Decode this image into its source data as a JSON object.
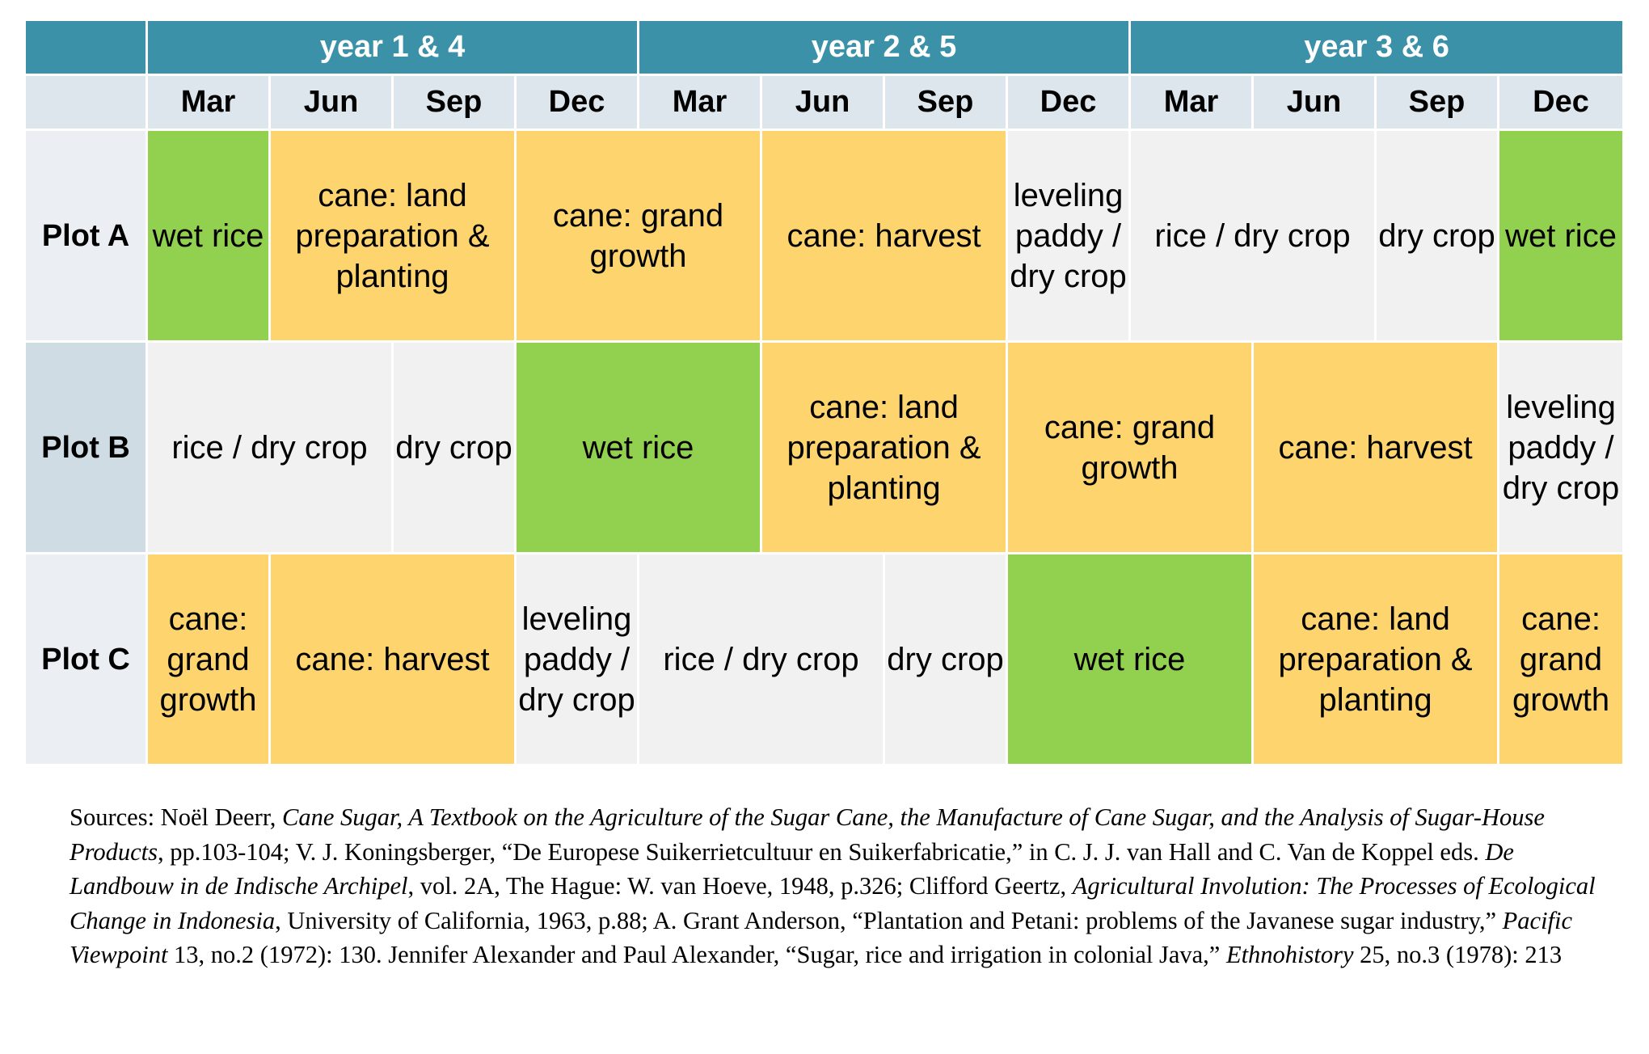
{
  "table": {
    "years": [
      "year 1 & 4",
      "year 2 & 5",
      "year 3 & 6"
    ],
    "months": [
      "Mar",
      "Jun",
      "Sep",
      "Dec",
      "Mar",
      "Jun",
      "Sep",
      "Dec",
      "Mar",
      "Jun",
      "Sep",
      "Dec"
    ],
    "plot_a": {
      "label": "Plot A",
      "cells": [
        {
          "text": "wet rice",
          "kind": "wet",
          "span": 1
        },
        {
          "text": "cane: land preparation & planting",
          "kind": "cane",
          "span": 2
        },
        {
          "text": "cane: grand growth",
          "kind": "cane",
          "span": 2
        },
        {
          "text": "cane: harvest",
          "kind": "cane",
          "span": 2
        },
        {
          "text": "leveling paddy / dry crop",
          "kind": "dry",
          "span": 1
        },
        {
          "text": "rice / dry crop",
          "kind": "dry",
          "span": 2
        },
        {
          "text": "dry crop",
          "kind": "dry",
          "span": 1
        },
        {
          "text": "wet rice",
          "kind": "wet",
          "span": 1
        }
      ]
    },
    "plot_b": {
      "label": "Plot B",
      "cells": [
        {
          "text": "rice / dry crop",
          "kind": "dry",
          "span": 2
        },
        {
          "text": "dry crop",
          "kind": "dry",
          "span": 1
        },
        {
          "text": "wet rice",
          "kind": "wet",
          "span": 2
        },
        {
          "text": "cane: land preparation & planting",
          "kind": "cane",
          "span": 2
        },
        {
          "text": "cane: grand growth",
          "kind": "cane",
          "span": 2
        },
        {
          "text": "cane: harvest",
          "kind": "cane",
          "span": 2
        },
        {
          "text": "leveling paddy / dry crop",
          "kind": "dry",
          "span": 1
        }
      ]
    },
    "plot_c": {
      "label": "Plot C",
      "cells": [
        {
          "text": "cane: grand growth",
          "kind": "cane",
          "span": 1
        },
        {
          "text": "cane: harvest",
          "kind": "cane",
          "span": 2
        },
        {
          "text": "leveling paddy / dry crop",
          "kind": "dry",
          "span": 1
        },
        {
          "text": "rice / dry crop",
          "kind": "dry",
          "span": 2
        },
        {
          "text": "dry crop",
          "kind": "dry",
          "span": 1
        },
        {
          "text": "wet rice",
          "kind": "wet",
          "span": 2
        },
        {
          "text": "cane: land preparation & planting",
          "kind": "cane",
          "span": 2
        },
        {
          "text": "cane: grand growth",
          "kind": "cane",
          "span": 1
        }
      ]
    }
  },
  "sources": {
    "s01": "Sources: Noël Deerr, ",
    "s02": "Cane Sugar, A Textbook on the Agriculture of the Sugar Cane, the Manufacture of Cane Sugar, and the Analysis of Sugar-House Products",
    "s03": ", pp.103-104; V. J. Koningsberger, “De Europese Suikerrietcultuur en Suikerfabricatie,” in C. J. J. van Hall and C. Van de Koppel eds. ",
    "s04": "De Landbouw in de Indische Archipel",
    "s05": ", vol. 2A, The Hague: W. van Hoeve, 1948, p.326; Clifford Geertz, ",
    "s06": "Agricultural Involution: The Processes of Ecological Change in Indonesia",
    "s07": ", University of California, 1963, p.88; A. Grant Anderson, “Plantation and Petani: problems of the Javanese sugar industry,” ",
    "s08": "Pacific Viewpoint",
    "s09": " 13, no.2 (1972): 130. Jennifer Alexander and Paul Alexander, “Sugar, rice and irrigation in colonial Java,” ",
    "s10": "Ethnohistory",
    "s11": " 25, no.3 (1978): 213"
  },
  "colors": {
    "header": "#3b91a8",
    "month_row": "#dde6ec",
    "wet_rice": "#92d050",
    "cane": "#fdd46e",
    "dry": "#f1f1f2"
  }
}
